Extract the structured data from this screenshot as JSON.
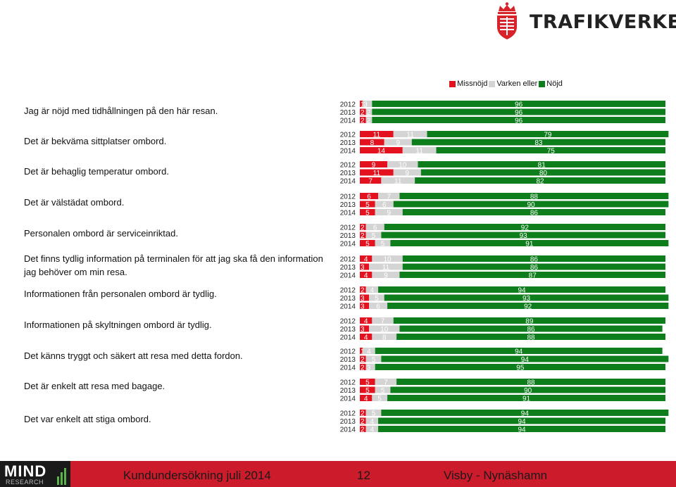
{
  "brand": {
    "name": "TRAFIKVERKET"
  },
  "legend": {
    "items": [
      "Missnöjd",
      "Varken eller",
      "Nöjd"
    ]
  },
  "colors": {
    "missnojd": "#e3121e",
    "varken": "#d4d4d4",
    "nojd": "#0e7d1b"
  },
  "footer": {
    "title": "Kundundersökning juli 2014",
    "page": "12",
    "route": "Visby - Nynäshamn",
    "logo_main": "MIND",
    "logo_sub": "RESEARCH"
  },
  "chart_data": {
    "type": "bar",
    "stacked": true,
    "orientation": "horizontal",
    "xlim": [
      0,
      100
    ],
    "unit": "%",
    "series_names": [
      "Missnöjd",
      "Varken eller",
      "Nöjd"
    ],
    "questions": [
      {
        "label": "Jag är nöjd med tidhållningen på den här resan.",
        "rows": [
          {
            "year": "2012",
            "values": [
              1,
              3,
              96
            ]
          },
          {
            "year": "2013",
            "values": [
              2,
              2,
              96
            ]
          },
          {
            "year": "2014",
            "values": [
              2,
              2,
              96
            ]
          }
        ]
      },
      {
        "label": "Det är bekväma sittplatser ombord.",
        "rows": [
          {
            "year": "2012",
            "values": [
              11,
              11,
              79
            ]
          },
          {
            "year": "2013",
            "values": [
              8,
              9,
              83
            ]
          },
          {
            "year": "2014",
            "values": [
              14,
              11,
              75
            ]
          }
        ]
      },
      {
        "label": "Det är behaglig temperatur ombord.",
        "rows": [
          {
            "year": "2012",
            "values": [
              9,
              10,
              81
            ]
          },
          {
            "year": "2013",
            "values": [
              11,
              9,
              80
            ]
          },
          {
            "year": "2014",
            "values": [
              7,
              11,
              82
            ]
          }
        ]
      },
      {
        "label": "Det är välstädat ombord.",
        "rows": [
          {
            "year": "2012",
            "values": [
              6,
              7,
              88
            ]
          },
          {
            "year": "2013",
            "values": [
              5,
              6,
              90
            ]
          },
          {
            "year": "2014",
            "values": [
              5,
              9,
              86
            ]
          }
        ]
      },
      {
        "label": "Personalen ombord är serviceinriktad.",
        "rows": [
          {
            "year": "2012",
            "values": [
              2,
              6,
              92
            ]
          },
          {
            "year": "2013",
            "values": [
              2,
              5,
              93
            ]
          },
          {
            "year": "2014",
            "values": [
              5,
              5,
              91
            ]
          }
        ]
      },
      {
        "label": "Det finns tydlig information på terminalen för att jag ska få den information jag behöver om min resa.",
        "rows": [
          {
            "year": "2012",
            "values": [
              4,
              10,
              86
            ]
          },
          {
            "year": "2013",
            "values": [
              3,
              11,
              86
            ]
          },
          {
            "year": "2014",
            "values": [
              4,
              9,
              87
            ]
          }
        ]
      },
      {
        "label": "Informationen från personalen ombord är tydlig.",
        "rows": [
          {
            "year": "2012",
            "values": [
              2,
              4,
              94
            ]
          },
          {
            "year": "2013",
            "values": [
              3,
              5,
              93
            ]
          },
          {
            "year": "2014",
            "values": [
              3,
              6,
              92
            ]
          }
        ]
      },
      {
        "label": "Informationen på skyltningen ombord är tydlig.",
        "rows": [
          {
            "year": "2012",
            "values": [
              4,
              7,
              89
            ]
          },
          {
            "year": "2013",
            "values": [
              3,
              10,
              86
            ]
          },
          {
            "year": "2014",
            "values": [
              4,
              8,
              88
            ]
          }
        ]
      },
      {
        "label": "Det känns tryggt och säkert att resa med detta fordon.",
        "rows": [
          {
            "year": "2012",
            "values": [
              1,
              4,
              94
            ]
          },
          {
            "year": "2013",
            "values": [
              2,
              5,
              94
            ]
          },
          {
            "year": "2014",
            "values": [
              2,
              3,
              95
            ]
          }
        ]
      },
      {
        "label": "Det är enkelt att resa med bagage.",
        "rows": [
          {
            "year": "2012",
            "values": [
              5,
              7,
              88
            ]
          },
          {
            "year": "2013",
            "values": [
              5,
              5,
              90
            ]
          },
          {
            "year": "2014",
            "values": [
              4,
              5,
              91
            ]
          }
        ]
      },
      {
        "label": "Det var enkelt att stiga ombord.",
        "rows": [
          {
            "year": "2012",
            "values": [
              2,
              5,
              94
            ]
          },
          {
            "year": "2013",
            "values": [
              2,
              4,
              94
            ]
          },
          {
            "year": "2014",
            "values": [
              2,
              4,
              94
            ]
          }
        ]
      }
    ]
  }
}
